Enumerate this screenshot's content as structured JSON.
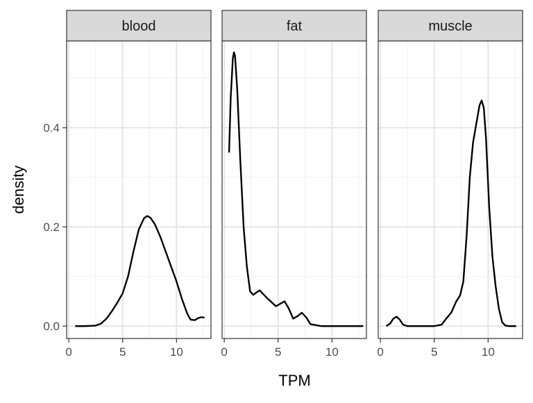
{
  "chart_data": {
    "type": "line",
    "xlabel": "TPM",
    "ylabel": "density",
    "xlim": [
      -0.2,
      13.2
    ],
    "ylim": [
      -0.025,
      0.575
    ],
    "x_ticks": [
      0,
      5,
      10
    ],
    "y_ticks": [
      0.0,
      0.2,
      0.4
    ],
    "y_tick_labels": [
      "0.0",
      "0.2",
      "0.4"
    ],
    "facets": [
      {
        "name": "blood",
        "x": [
          0.6,
          1.5,
          2.5,
          3.0,
          3.5,
          4.0,
          4.5,
          5.0,
          5.5,
          6.0,
          6.5,
          7.0,
          7.3,
          7.6,
          8.0,
          8.5,
          9.0,
          9.5,
          10.0,
          10.5,
          11.0,
          11.3,
          11.7,
          12.0,
          12.3,
          12.6
        ],
        "y": [
          0.0,
          0.0,
          0.001,
          0.005,
          0.015,
          0.03,
          0.047,
          0.066,
          0.1,
          0.15,
          0.195,
          0.218,
          0.222,
          0.218,
          0.205,
          0.18,
          0.15,
          0.12,
          0.09,
          0.055,
          0.025,
          0.013,
          0.012,
          0.016,
          0.018,
          0.017
        ]
      },
      {
        "name": "fat",
        "x": [
          0.45,
          0.6,
          0.8,
          0.9,
          1.0,
          1.2,
          1.5,
          1.8,
          2.1,
          2.4,
          2.7,
          3.0,
          3.3,
          3.6,
          4.0,
          4.4,
          4.8,
          5.2,
          5.6,
          6.0,
          6.4,
          6.8,
          7.2,
          7.6,
          8.0,
          9.0,
          10.0,
          12.9
        ],
        "y": [
          0.35,
          0.46,
          0.54,
          0.552,
          0.545,
          0.48,
          0.33,
          0.2,
          0.12,
          0.07,
          0.063,
          0.068,
          0.072,
          0.065,
          0.056,
          0.048,
          0.04,
          0.045,
          0.05,
          0.035,
          0.015,
          0.02,
          0.027,
          0.018,
          0.004,
          0.0,
          0.0,
          0.0
        ]
      },
      {
        "name": "muscle",
        "x": [
          0.55,
          0.9,
          1.2,
          1.5,
          1.8,
          2.1,
          2.5,
          3.0,
          4.0,
          5.0,
          5.7,
          6.0,
          6.3,
          6.6,
          7.0,
          7.4,
          7.7,
          8.0,
          8.3,
          8.6,
          9.0,
          9.2,
          9.4,
          9.6,
          9.8,
          10.1,
          10.4,
          10.7,
          11.0,
          11.3,
          11.6,
          12.0,
          12.4,
          12.6
        ],
        "y": [
          0.0,
          0.005,
          0.015,
          0.019,
          0.013,
          0.003,
          0.0,
          0.0,
          0.0,
          0.0,
          0.003,
          0.012,
          0.02,
          0.028,
          0.048,
          0.062,
          0.09,
          0.18,
          0.3,
          0.37,
          0.42,
          0.445,
          0.455,
          0.44,
          0.38,
          0.24,
          0.14,
          0.08,
          0.035,
          0.008,
          0.001,
          0.0,
          0.0,
          0.0
        ]
      }
    ]
  }
}
